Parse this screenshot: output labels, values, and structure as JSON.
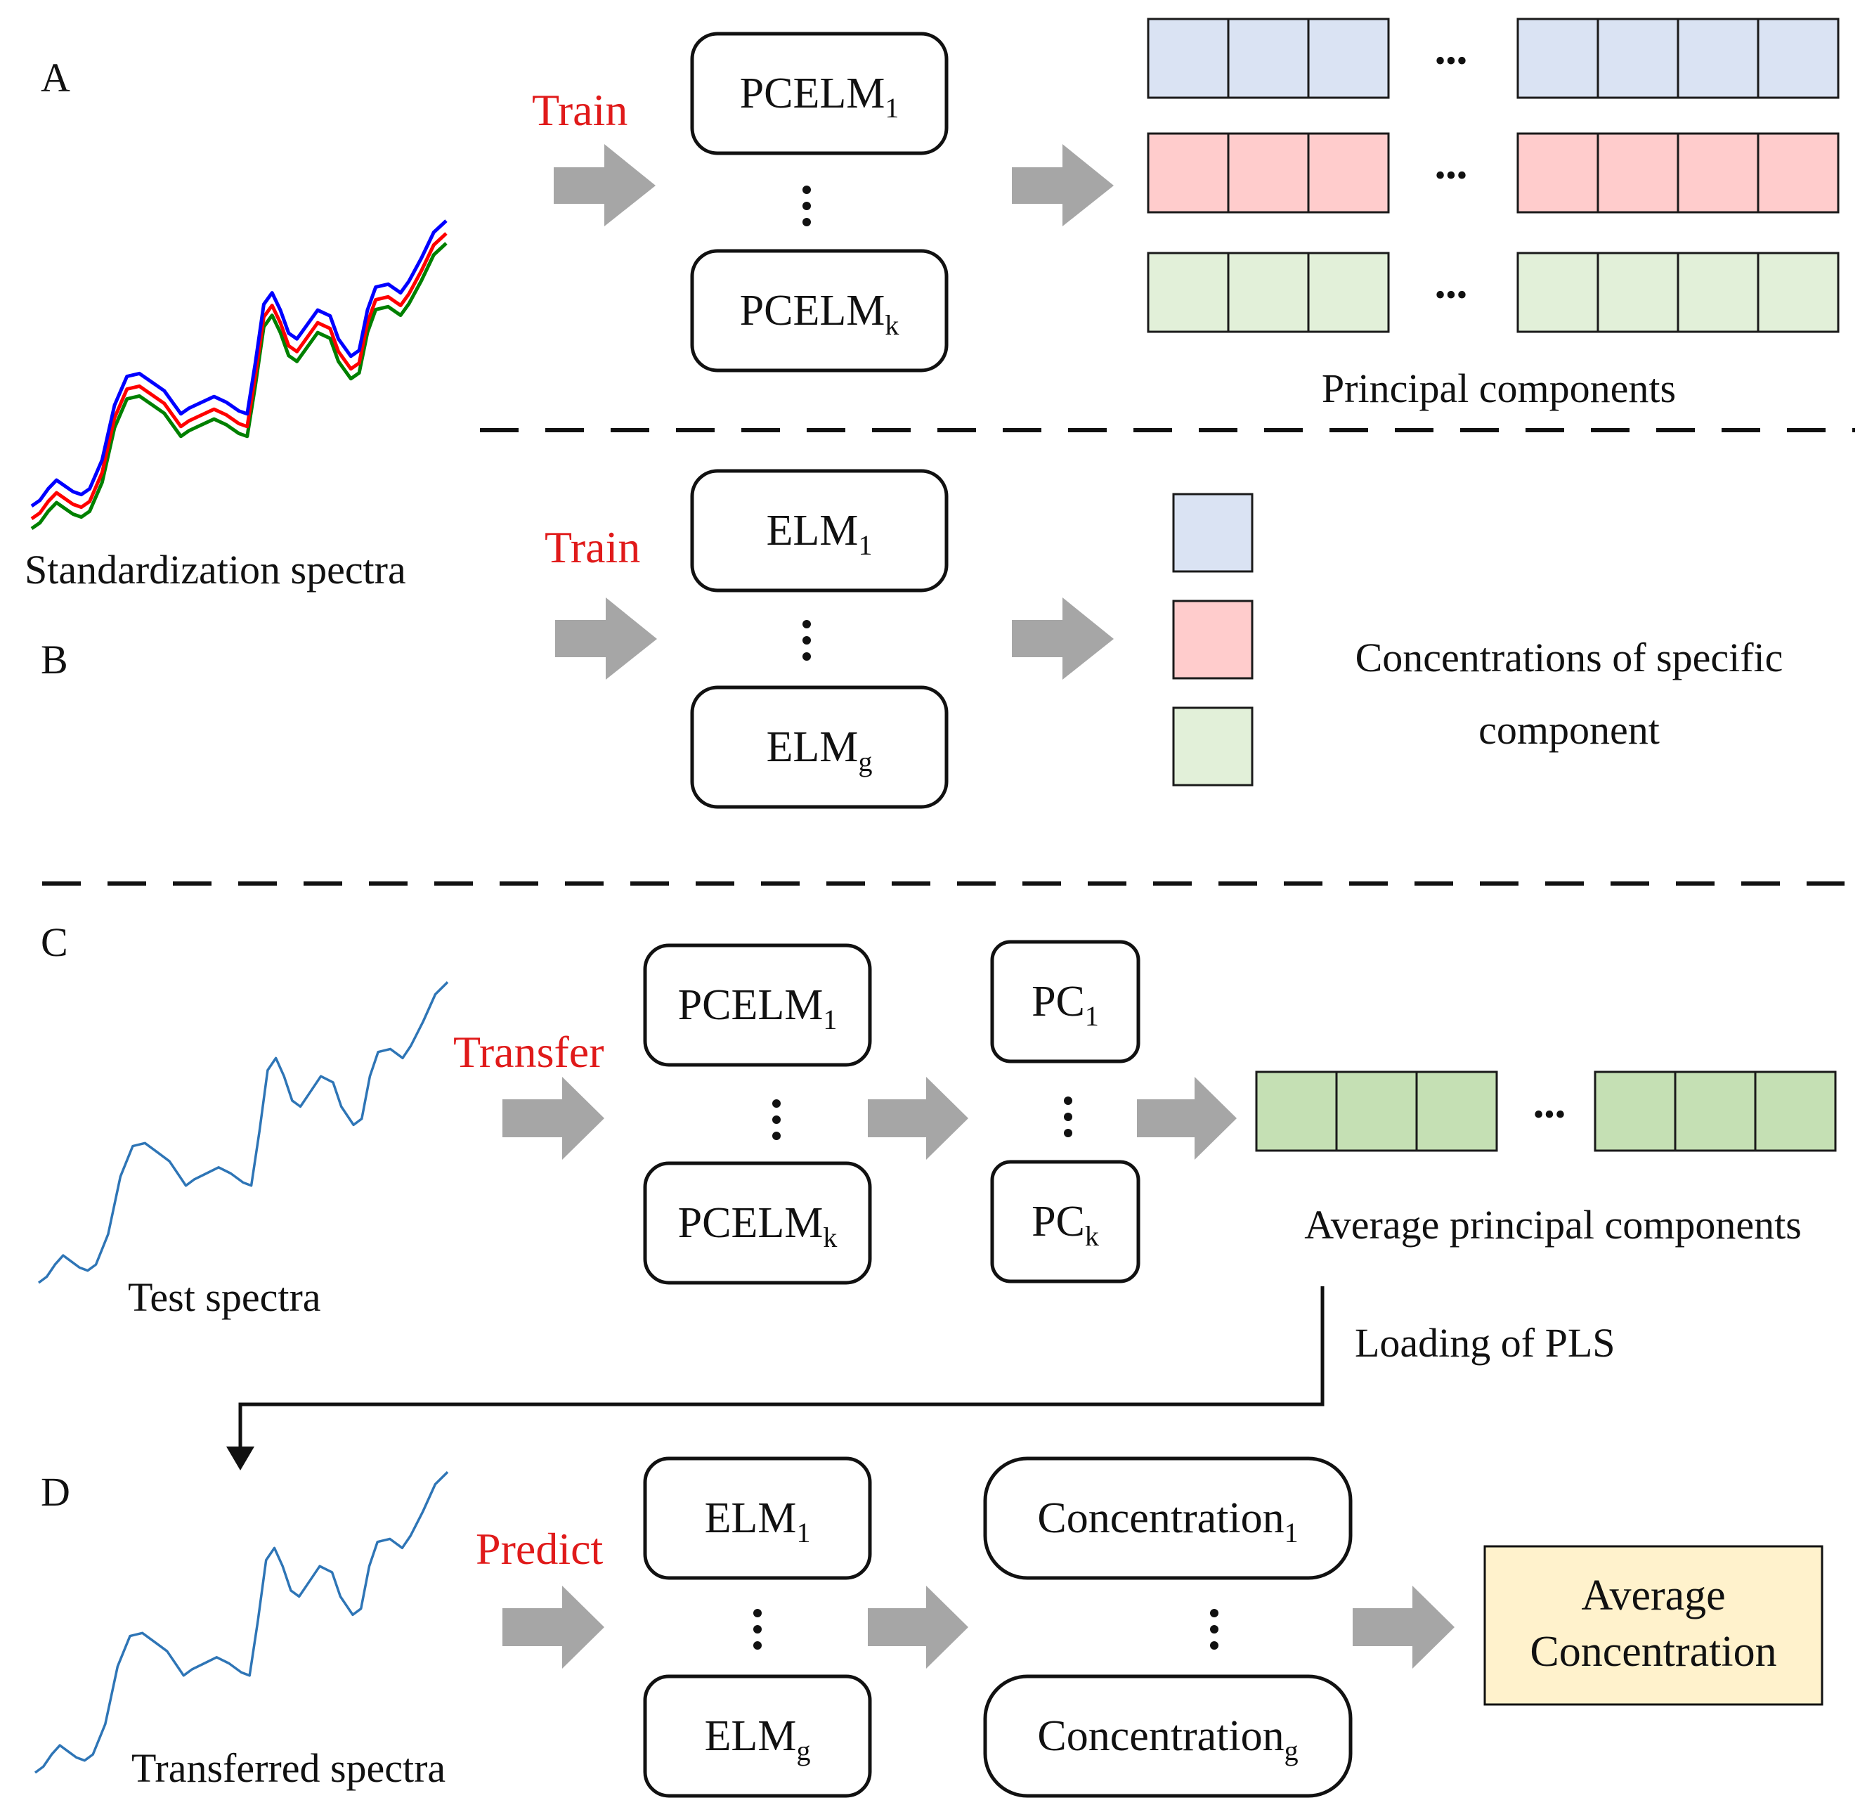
{
  "colors": {
    "blue_cell": "#dae3f3",
    "red_cell": "#ffcccc",
    "green_cell": "#e2f0d9",
    "avg_pc_cell": "#c5e0b4",
    "avg_conc_fill": "#fff2cc",
    "action_text": "#e01a1a",
    "arrow": "#a6a6a6",
    "spectrum_blue": "#0000ff",
    "spectrum_red": "#ff0000",
    "spectrum_green": "#008000",
    "spectrum_single": "#2e75b6"
  },
  "panel_a": {
    "letter": "A",
    "action": "Train",
    "model_top": {
      "base": "PCELM",
      "sub": "1"
    },
    "model_bottom": {
      "base": "PCELM",
      "sub": "k"
    },
    "output_label": "Principal components",
    "ellipsis": "•••"
  },
  "spectra_label": "Standardization spectra",
  "panel_b": {
    "letter": "B",
    "action": "Train",
    "model_top": {
      "base": "ELM",
      "sub": "1"
    },
    "model_bottom": {
      "base": "ELM",
      "sub": "g"
    },
    "output_label_line1": "Concentrations of specific",
    "output_label_line2": "component"
  },
  "panel_c": {
    "letter": "C",
    "action": "Transfer",
    "spectra_label": "Test spectra",
    "model_top": {
      "base": "PCELM",
      "sub": "1"
    },
    "model_bottom": {
      "base": "PCELM",
      "sub": "k"
    },
    "pc_top": {
      "base": "PC",
      "sub": "1"
    },
    "pc_bottom": {
      "base": "PC",
      "sub": "k"
    },
    "output_label": "Average principal components",
    "ellipsis": "•••"
  },
  "connector_label": "Loading of PLS",
  "panel_d": {
    "letter": "D",
    "action": "Predict",
    "spectra_label": "Transferred spectra",
    "model_top": {
      "base": "ELM",
      "sub": "1"
    },
    "model_bottom": {
      "base": "ELM",
      "sub": "g"
    },
    "conc_top": {
      "base": "Concentration",
      "sub": "1"
    },
    "conc_bottom": {
      "base": "Concentration",
      "sub": "g"
    },
    "result_line1": "Average",
    "result_line2": "Concentration"
  }
}
